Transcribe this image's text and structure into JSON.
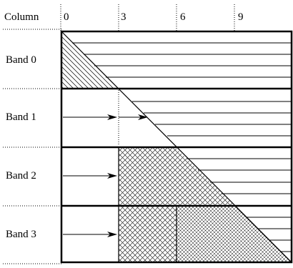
{
  "header": {
    "row_label": "Column",
    "column_ticks": [
      "0",
      "3",
      "6",
      "9"
    ]
  },
  "bands": [
    {
      "label": "Band 0"
    },
    {
      "label": "Band 1"
    },
    {
      "label": "Band 2"
    },
    {
      "label": "Band 3"
    }
  ],
  "colors": {
    "stroke": "#000000",
    "background": "#ffffff"
  }
}
